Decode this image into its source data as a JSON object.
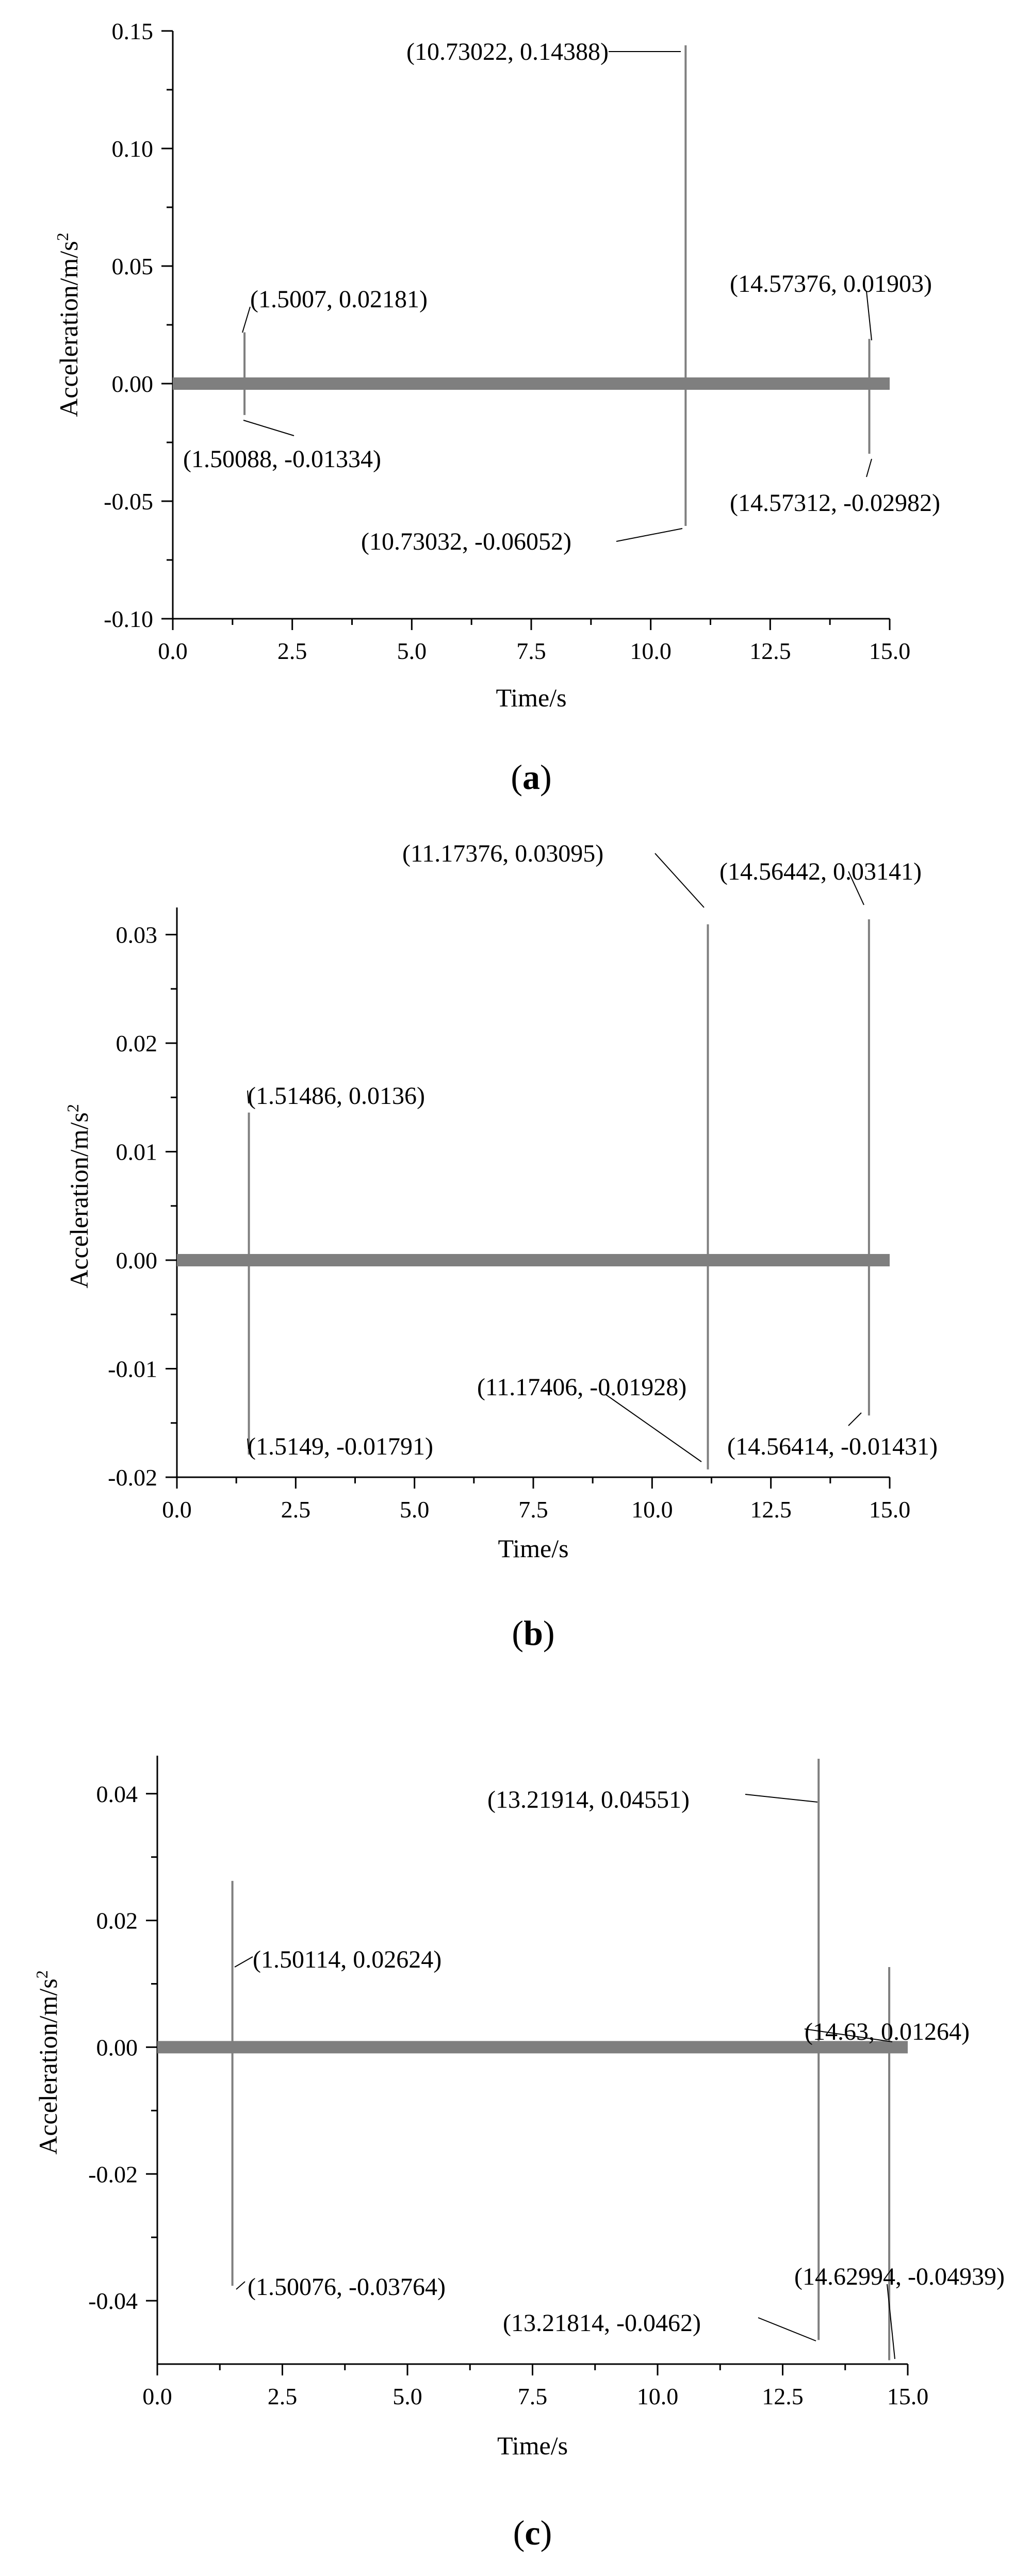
{
  "chart_data": [
    {
      "type": "line",
      "caption": "a",
      "xlabel": "Time/s",
      "ylabel": "Acceleration/m/s",
      "ylabel_sup": "2",
      "xlim": [
        0,
        15
      ],
      "ylim": [
        -0.1,
        0.15
      ],
      "x_ticks": [
        0,
        2.5,
        5,
        7.5,
        10,
        12.5,
        15
      ],
      "x_tick_labels": [
        "0.0",
        "2.5",
        "5.0",
        "7.5",
        "10.0",
        "12.5",
        "15.0"
      ],
      "y_ticks": [
        -0.1,
        -0.05,
        0.0,
        0.05,
        0.1,
        0.15
      ],
      "y_tick_labels": [
        "-0.10",
        "-0.05",
        "0.00",
        "0.05",
        "0.10",
        "0.15"
      ],
      "grid": false,
      "line_color": "#7f7f7f",
      "series": [
        {
          "x": [
            0,
            1.5007,
            1.50088,
            10.73022,
            10.73032,
            14.57312,
            14.57376,
            15
          ],
          "y": [
            0,
            0.02181,
            -0.01334,
            0.14388,
            -0.06052,
            -0.02982,
            0.01903,
            0
          ]
        }
      ],
      "annotations": [
        {
          "text": "(10.73022, 0.14388)",
          "x": 10.73022,
          "y": 0.14388
        },
        {
          "text": "(1.5007, 0.02181)",
          "x": 1.5007,
          "y": 0.02181
        },
        {
          "text": "(14.57376, 0.01903)",
          "x": 14.57376,
          "y": 0.01903
        },
        {
          "text": "(1.50088, -0.01334)",
          "x": 1.50088,
          "y": -0.01334
        },
        {
          "text": "(14.57312, -0.02982)",
          "x": 14.57312,
          "y": -0.02982
        },
        {
          "text": "(10.73032, -0.06052)",
          "x": 10.73032,
          "y": -0.06052
        }
      ]
    },
    {
      "type": "line",
      "caption": "b",
      "xlabel": "Time/s",
      "ylabel": "Acceleration/m/s",
      "ylabel_sup": "2",
      "xlim": [
        0,
        15
      ],
      "ylim": [
        -0.02,
        0.0325
      ],
      "x_ticks": [
        0,
        2.5,
        5,
        7.5,
        10,
        12.5,
        15
      ],
      "x_tick_labels": [
        "0.0",
        "2.5",
        "5.0",
        "7.5",
        "10.0",
        "12.5",
        "15.0"
      ],
      "y_ticks": [
        -0.02,
        -0.01,
        0.0,
        0.01,
        0.02,
        0.03
      ],
      "y_tick_labels": [
        "-0.02",
        "-0.01",
        "0.00",
        "0.01",
        "0.02",
        "0.03"
      ],
      "grid": false,
      "line_color": "#7f7f7f",
      "series": [
        {
          "x": [
            0,
            1.51486,
            1.5149,
            11.17376,
            11.17406,
            14.56414,
            14.56442,
            15
          ],
          "y": [
            0,
            0.0136,
            -0.01791,
            0.03095,
            -0.01928,
            -0.01431,
            0.03141,
            0
          ]
        }
      ],
      "annotations": [
        {
          "text": "(11.17376, 0.03095)",
          "x": 11.17376,
          "y": 0.03095
        },
        {
          "text": "(14.56442, 0.03141)",
          "x": 14.56442,
          "y": 0.03141
        },
        {
          "text": "(1.51486, 0.0136)",
          "x": 1.51486,
          "y": 0.0136
        },
        {
          "text": "(11.17406, -0.01928)",
          "x": 11.17406,
          "y": -0.01928
        },
        {
          "text": "(1.5149, -0.01791)",
          "x": 1.5149,
          "y": -0.01791
        },
        {
          "text": "(14.56414, -0.01431)",
          "x": 14.56414,
          "y": -0.01431
        }
      ]
    },
    {
      "type": "line",
      "caption": "c",
      "xlabel": "Time/s",
      "ylabel": "Acceleration/m/s",
      "ylabel_sup": "2",
      "xlim": [
        0,
        15
      ],
      "ylim": [
        -0.05,
        0.046
      ],
      "x_ticks": [
        0,
        2.5,
        5,
        7.5,
        10,
        12.5,
        15
      ],
      "x_tick_labels": [
        "0.0",
        "2.5",
        "5.0",
        "7.5",
        "10.0",
        "12.5",
        "15.0"
      ],
      "y_ticks": [
        -0.04,
        -0.02,
        0.0,
        0.02,
        0.04
      ],
      "y_tick_labels": [
        "-0.04",
        "-0.02",
        "0.00",
        "0.02",
        "0.04"
      ],
      "grid": false,
      "line_color": "#7f7f7f",
      "series": [
        {
          "x": [
            0,
            1.50076,
            1.50114,
            13.21814,
            13.21914,
            14.62994,
            14.63,
            15
          ],
          "y": [
            0,
            -0.03764,
            0.02624,
            -0.0462,
            0.04551,
            -0.04939,
            0.01264,
            0
          ]
        }
      ],
      "annotations": [
        {
          "text": "(13.21914, 0.04551)",
          "x": 13.21914,
          "y": 0.04551
        },
        {
          "text": "(1.50114, 0.02624)",
          "x": 1.50114,
          "y": 0.02624
        },
        {
          "text": "(14.63, 0.01264)",
          "x": 14.63,
          "y": 0.01264
        },
        {
          "text": "(1.50076, -0.03764)",
          "x": 1.50076,
          "y": -0.03764
        },
        {
          "text": "(14.62994, -0.04939)",
          "x": 14.62994,
          "y": -0.04939
        },
        {
          "text": "(13.21814, -0.0462)",
          "x": 13.21814,
          "y": -0.0462
        }
      ]
    }
  ]
}
